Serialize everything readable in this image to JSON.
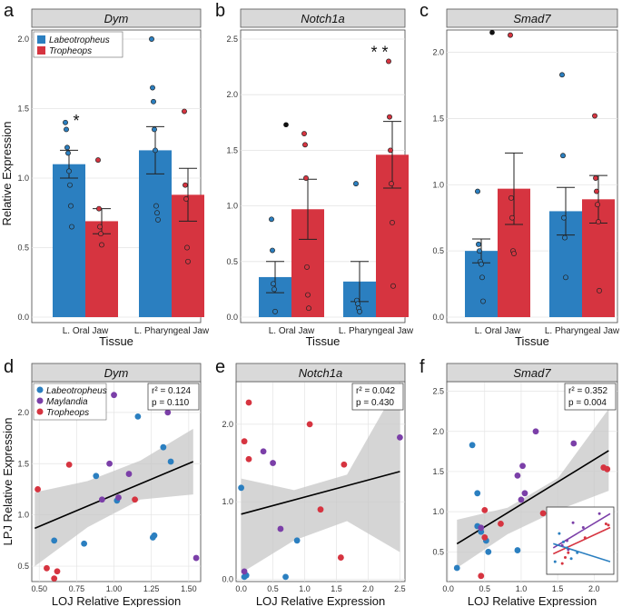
{
  "colors": {
    "labeotropheus": "#2b7fc0",
    "tropheops": "#d63440",
    "maylandia": "#7b3fa8",
    "strip_bg": "#d9d9d9",
    "ribbon": "#c7c7c7",
    "grid": "#e4e4e4"
  },
  "chart_data": [
    {
      "id": "a",
      "type": "bar",
      "letter": "a",
      "title": "Dym",
      "categories": [
        "L. Oral Jaw",
        "L. Pharyngeal Jaw"
      ],
      "xlabel": "Tissue",
      "ylabel": "Relative Expression",
      "ylim": [
        0,
        2.0
      ],
      "ticks": [
        0.0,
        0.5,
        1.0,
        1.5,
        2.0
      ],
      "tick_labels": [
        "0.0",
        "0.5",
        "1.0",
        "1.5",
        "2.0"
      ],
      "legend": [
        "Labeotropheus",
        "Tropheops"
      ],
      "series": [
        {
          "name": "Labeotropheus",
          "values": [
            1.1,
            1.2
          ],
          "err": [
            0.1,
            0.17
          ],
          "points": [
            [
              1.4,
              1.35,
              1.22,
              1.18,
              1.05,
              0.95,
              0.8,
              0.65
            ],
            [
              2.0,
              1.65,
              1.55,
              1.35,
              1.2,
              0.8,
              0.75,
              0.7
            ]
          ]
        },
        {
          "name": "Tropheops",
          "values": [
            0.69,
            0.88
          ],
          "err": [
            0.09,
            0.19
          ],
          "points": [
            [
              1.13,
              0.78,
              0.65,
              0.6,
              0.52
            ],
            [
              1.48,
              0.95,
              0.85,
              0.5,
              0.4
            ]
          ]
        }
      ],
      "annotations": [
        {
          "label": "*",
          "cat": 0
        }
      ]
    },
    {
      "id": "b",
      "type": "bar",
      "letter": "b",
      "title": "Notch1a",
      "categories": [
        "L. Oral Jaw",
        "L. Pharyngeal Jaw"
      ],
      "xlabel": "Tissue",
      "ylabel": "",
      "ylim": [
        0,
        2.5
      ],
      "ticks": [
        0.0,
        0.5,
        1.0,
        1.5,
        2.0,
        2.5
      ],
      "tick_labels": [
        "0.0",
        "0.5",
        "1.0",
        "1.5",
        "2.0",
        "2.5"
      ],
      "series": [
        {
          "name": "Labeotropheus",
          "values": [
            0.36,
            0.32
          ],
          "err": [
            0.14,
            0.18
          ],
          "points": [
            [
              0.88,
              0.6,
              0.3,
              0.25,
              0.05
            ],
            [
              1.2,
              0.15,
              0.12,
              0.08,
              0.05
            ]
          ]
        },
        {
          "name": "Tropheops",
          "values": [
            0.97,
            1.46
          ],
          "err": [
            0.27,
            0.3
          ],
          "points": [
            [
              1.65,
              1.55,
              1.25,
              0.45,
              0.2,
              0.08
            ],
            [
              2.3,
              1.8,
              1.5,
              1.2,
              0.85,
              0.28
            ]
          ]
        }
      ],
      "outliers": [
        {
          "cat": 0,
          "value": 1.73
        }
      ],
      "annotations": [
        {
          "label": "* *",
          "cat": 1
        }
      ]
    },
    {
      "id": "c",
      "type": "bar",
      "letter": "c",
      "title": "Smad7",
      "categories": [
        "L. Oral Jaw",
        "L. Pharyngeal Jaw"
      ],
      "xlabel": "Tissue",
      "ylabel": "",
      "ylim": [
        0,
        2.1
      ],
      "ticks": [
        0.0,
        0.5,
        1.0,
        1.5,
        2.0
      ],
      "tick_labels": [
        "0.0",
        "0.5",
        "1.0",
        "1.5",
        "2.0"
      ],
      "series": [
        {
          "name": "Labeotropheus",
          "values": [
            0.5,
            0.8
          ],
          "err": [
            0.09,
            0.18
          ],
          "points": [
            [
              0.95,
              0.55,
              0.5,
              0.42,
              0.4,
              0.3,
              0.12
            ],
            [
              1.83,
              1.22,
              0.75,
              0.6,
              0.3
            ]
          ]
        },
        {
          "name": "Tropheops",
          "values": [
            0.97,
            0.89
          ],
          "err": [
            0.27,
            0.18
          ],
          "points": [
            [
              2.13,
              0.9,
              0.75,
              0.5,
              0.48
            ],
            [
              1.52,
              1.05,
              0.95,
              0.85,
              0.72,
              0.2
            ]
          ]
        }
      ],
      "outliers": [
        {
          "cat": 0,
          "value": 2.15
        }
      ]
    },
    {
      "id": "d",
      "type": "scatter",
      "letter": "d",
      "title": "Dym",
      "xlabel": "LOJ Relative Expression",
      "ylabel": "LPJ Relative Expression",
      "xlim": [
        0.45,
        1.58
      ],
      "ylim": [
        0.35,
        2.3
      ],
      "xticks": [
        0.5,
        0.75,
        1.0,
        1.25,
        1.5
      ],
      "xtick_labels": [
        "0.50",
        "0.75",
        "1.00",
        "1.25",
        "1.50"
      ],
      "yticks": [
        0.5,
        1.0,
        1.5,
        2.0
      ],
      "ytick_labels": [
        "0.5",
        "1.0",
        "1.5",
        "2.0"
      ],
      "r2": "r² = 0.124",
      "p": "p = 0.110",
      "legend": [
        "Labeotropheus",
        "Maylandia",
        "Tropheops"
      ],
      "fit": {
        "x0": 0.47,
        "x1": 1.53,
        "y0": 0.87,
        "y1": 1.52
      },
      "ribbon": {
        "upper": [
          1.22,
          1.33,
          1.53,
          1.84
        ],
        "lower": [
          0.5,
          0.88,
          1.15,
          1.2
        ]
      },
      "points": [
        {
          "g": "Labeotropheus",
          "x": 1.33,
          "y": 1.66
        },
        {
          "g": "Labeotropheus",
          "x": 1.16,
          "y": 1.96
        },
        {
          "g": "Labeotropheus",
          "x": 1.38,
          "y": 1.52
        },
        {
          "g": "Labeotropheus",
          "x": 0.88,
          "y": 1.38
        },
        {
          "g": "Labeotropheus",
          "x": 1.27,
          "y": 0.8
        },
        {
          "g": "Labeotropheus",
          "x": 1.26,
          "y": 0.78
        },
        {
          "g": "Labeotropheus",
          "x": 0.8,
          "y": 0.72
        },
        {
          "g": "Labeotropheus",
          "x": 0.6,
          "y": 0.75
        },
        {
          "g": "Labeotropheus",
          "x": 1.02,
          "y": 1.14
        },
        {
          "g": "Maylandia",
          "x": 1.0,
          "y": 2.17
        },
        {
          "g": "Maylandia",
          "x": 1.36,
          "y": 2.0
        },
        {
          "g": "Maylandia",
          "x": 0.97,
          "y": 1.5
        },
        {
          "g": "Maylandia",
          "x": 1.1,
          "y": 1.4
        },
        {
          "g": "Maylandia",
          "x": 0.92,
          "y": 1.15
        },
        {
          "g": "Maylandia",
          "x": 1.03,
          "y": 1.17
        },
        {
          "g": "Maylandia",
          "x": 1.55,
          "y": 0.58
        },
        {
          "g": "Tropheops",
          "x": 0.49,
          "y": 1.25
        },
        {
          "g": "Tropheops",
          "x": 0.7,
          "y": 1.49
        },
        {
          "g": "Tropheops",
          "x": 1.14,
          "y": 1.15
        },
        {
          "g": "Tropheops",
          "x": 0.55,
          "y": 0.48
        },
        {
          "g": "Tropheops",
          "x": 0.6,
          "y": 0.38
        },
        {
          "g": "Tropheops",
          "x": 0.62,
          "y": 0.45
        }
      ]
    },
    {
      "id": "e",
      "type": "scatter",
      "letter": "e",
      "title": "Notch1a",
      "xlabel": "LOJ Relative Expression",
      "ylabel": "",
      "xlim": [
        -0.08,
        2.58
      ],
      "ylim": [
        -0.03,
        2.55
      ],
      "xticks": [
        0.0,
        0.5,
        1.0,
        1.5,
        2.0,
        2.5
      ],
      "xtick_labels": [
        "0.0",
        "0.5",
        "1.0",
        "1.5",
        "2.0",
        "2.5"
      ],
      "yticks": [
        0.0,
        1.0,
        2.0
      ],
      "ytick_labels": [
        "0.0",
        "1.0",
        "2.0"
      ],
      "r2": "r² = 0.042",
      "p": "p = 0.430",
      "fit": {
        "x0": 0.0,
        "x1": 2.5,
        "y0": 0.84,
        "y1": 1.39
      },
      "ribbon": {
        "upper": [
          1.3,
          1.15,
          1.35,
          2.55
        ],
        "lower": [
          0.08,
          0.5,
          0.75,
          0.35
        ]
      },
      "points": [
        {
          "g": "Labeotropheus",
          "x": 0.0,
          "y": 1.18
        },
        {
          "g": "Labeotropheus",
          "x": 0.88,
          "y": 0.5
        },
        {
          "g": "Labeotropheus",
          "x": 0.08,
          "y": 0.05
        },
        {
          "g": "Labeotropheus",
          "x": 0.05,
          "y": 0.03
        },
        {
          "g": "Labeotropheus",
          "x": 0.7,
          "y": 0.03
        },
        {
          "g": "Maylandia",
          "x": 2.5,
          "y": 1.83
        },
        {
          "g": "Maylandia",
          "x": 0.5,
          "y": 1.5
        },
        {
          "g": "Maylandia",
          "x": 0.35,
          "y": 1.65
        },
        {
          "g": "Maylandia",
          "x": 0.62,
          "y": 0.65
        },
        {
          "g": "Maylandia",
          "x": 0.05,
          "y": 0.1
        },
        {
          "g": "Tropheops",
          "x": 0.12,
          "y": 2.28
        },
        {
          "g": "Tropheops",
          "x": 1.08,
          "y": 2.0
        },
        {
          "g": "Tropheops",
          "x": 0.05,
          "y": 1.78
        },
        {
          "g": "Tropheops",
          "x": 0.12,
          "y": 1.55
        },
        {
          "g": "Tropheops",
          "x": 1.62,
          "y": 1.48
        },
        {
          "g": "Tropheops",
          "x": 1.25,
          "y": 0.9
        },
        {
          "g": "Tropheops",
          "x": 1.57,
          "y": 0.28
        }
      ]
    },
    {
      "id": "f",
      "type": "scatter",
      "letter": "f",
      "title": "Smad7",
      "xlabel": "LOJ Relative Expression",
      "ylabel": "",
      "xlim": [
        -0.02,
        2.32
      ],
      "ylim": [
        0.13,
        2.62
      ],
      "xticks": [
        0.0,
        0.5,
        1.0,
        1.5,
        2.0
      ],
      "xtick_labels": [
        "0.0",
        "0.5",
        "1.0",
        "1.5",
        "2.0"
      ],
      "yticks": [
        0.5,
        1.0,
        1.5,
        2.0,
        2.5
      ],
      "ytick_labels": [
        "0.5",
        "1.0",
        "1.5",
        "2.0",
        "2.5"
      ],
      "r2": "r² = 0.352",
      "p": "p = 0.004",
      "fit": {
        "x0": 0.12,
        "x1": 2.2,
        "y0": 0.6,
        "y1": 1.76
      },
      "ribbon": {
        "upper": [
          0.9,
          1.05,
          1.42,
          2.28
        ],
        "lower": [
          0.3,
          0.72,
          1.02,
          1.26
        ]
      },
      "points": [
        {
          "g": "Labeotropheus",
          "x": 0.33,
          "y": 1.83
        },
        {
          "g": "Labeotropheus",
          "x": 0.4,
          "y": 1.23
        },
        {
          "g": "Labeotropheus",
          "x": 0.45,
          "y": 0.75
        },
        {
          "g": "Labeotropheus",
          "x": 0.52,
          "y": 0.64
        },
        {
          "g": "Labeotropheus",
          "x": 0.4,
          "y": 0.82
        },
        {
          "g": "Labeotropheus",
          "x": 0.55,
          "y": 0.5
        },
        {
          "g": "Labeotropheus",
          "x": 0.95,
          "y": 0.52
        },
        {
          "g": "Labeotropheus",
          "x": 0.12,
          "y": 0.3
        },
        {
          "g": "Maylandia",
          "x": 1.2,
          "y": 2.0
        },
        {
          "g": "Maylandia",
          "x": 1.72,
          "y": 1.85
        },
        {
          "g": "Maylandia",
          "x": 1.02,
          "y": 1.57
        },
        {
          "g": "Maylandia",
          "x": 0.95,
          "y": 1.45
        },
        {
          "g": "Maylandia",
          "x": 1.05,
          "y": 1.23
        },
        {
          "g": "Maylandia",
          "x": 1.0,
          "y": 1.15
        },
        {
          "g": "Maylandia",
          "x": 0.45,
          "y": 0.8
        },
        {
          "g": "Tropheops",
          "x": 2.18,
          "y": 1.53
        },
        {
          "g": "Tropheops",
          "x": 2.13,
          "y": 1.55
        },
        {
          "g": "Tropheops",
          "x": 0.5,
          "y": 1.02
        },
        {
          "g": "Tropheops",
          "x": 1.3,
          "y": 0.98
        },
        {
          "g": "Tropheops",
          "x": 0.72,
          "y": 0.85
        },
        {
          "g": "Tropheops",
          "x": 0.5,
          "y": 0.68
        },
        {
          "g": "Tropheops",
          "x": 0.45,
          "y": 0.2
        }
      ],
      "inset": {
        "lines": [
          {
            "g": "Maylandia",
            "from": [
              0.05,
              0.38
            ],
            "to": [
              1.0,
              0.95
            ]
          },
          {
            "g": "Tropheops",
            "from": [
              0.05,
              0.28
            ],
            "to": [
              1.0,
              0.72
            ]
          },
          {
            "g": "Labeotropheus",
            "from": [
              0.05,
              0.45
            ],
            "to": [
              1.0,
              0.15
            ]
          }
        ],
        "points": [
          {
            "g": "Maylandia",
            "x": 0.82,
            "y": 0.95
          },
          {
            "g": "Maylandia",
            "x": 0.38,
            "y": 0.8
          },
          {
            "g": "Maylandia",
            "x": 0.55,
            "y": 0.72
          },
          {
            "g": "Maylandia",
            "x": 0.28,
            "y": 0.5
          },
          {
            "g": "Maylandia",
            "x": 0.2,
            "y": 0.42
          },
          {
            "g": "Maylandia",
            "x": 0.3,
            "y": 0.35
          },
          {
            "g": "Tropheops",
            "x": 0.97,
            "y": 0.76
          },
          {
            "g": "Tropheops",
            "x": 0.93,
            "y": 0.78
          },
          {
            "g": "Tropheops",
            "x": 0.58,
            "y": 0.55
          },
          {
            "g": "Tropheops",
            "x": 0.3,
            "y": 0.3
          },
          {
            "g": "Tropheops",
            "x": 0.25,
            "y": 0.22
          },
          {
            "g": "Tropheops",
            "x": 0.2,
            "y": 0.12
          },
          {
            "g": "Labeotropheus",
            "x": 0.15,
            "y": 0.62
          },
          {
            "g": "Labeotropheus",
            "x": 0.22,
            "y": 0.48
          },
          {
            "g": "Labeotropheus",
            "x": 0.28,
            "y": 0.38
          },
          {
            "g": "Labeotropheus",
            "x": 0.45,
            "y": 0.3
          },
          {
            "g": "Labeotropheus",
            "x": 0.35,
            "y": 0.2
          },
          {
            "g": "Labeotropheus",
            "x": 0.08,
            "y": 0.15
          }
        ]
      }
    }
  ]
}
